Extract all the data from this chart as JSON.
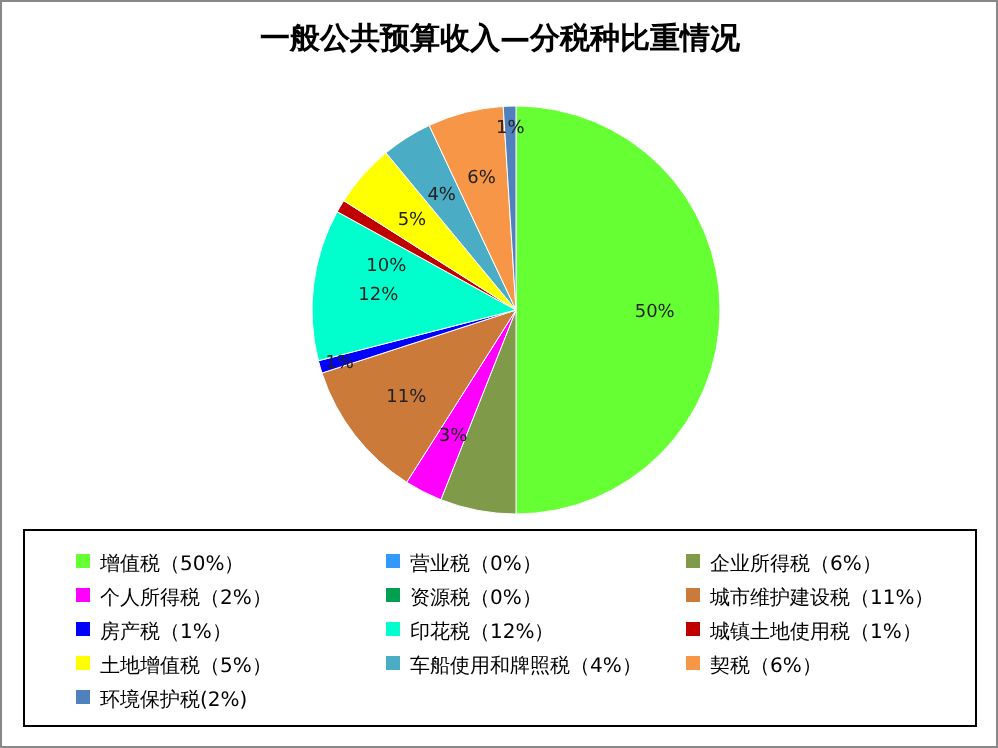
{
  "chart_data": {
    "type": "pie",
    "title": "一般公共预算收入—分税种比重情况",
    "categories": [
      "增值税（50%）",
      "营业税（0%）",
      "企业所得税（6%）",
      "个人所得税（2%）",
      "资源税（0%）",
      "城市维护建设税（11%）",
      "房产税（1%）",
      "印花税（12%）",
      "城镇土地使用税（1%）",
      "土地增值税（5%）",
      "车船使用和牌照税（4%）",
      "契税（6%）",
      "环境保护税(2%)"
    ],
    "values": [
      50,
      0,
      6,
      3,
      0,
      11,
      1,
      12,
      1,
      5,
      4,
      6,
      1
    ],
    "colors": [
      "#66ff33",
      "#3399ff",
      "#7f9a48",
      "#ff00ff",
      "#00a050",
      "#cc7a3a",
      "#0000ff",
      "#00ffcc",
      "#c00000",
      "#ffff00",
      "#4bacc6",
      "#f79646",
      "#4f81bd"
    ],
    "value_labels": [
      "50%",
      null,
      null,
      "3%",
      null,
      "11%",
      "1%",
      "12%",
      null,
      "5%",
      "4%",
      "6%",
      "1%"
    ],
    "annotations": [
      "10%"
    ],
    "legend": "bottom"
  }
}
